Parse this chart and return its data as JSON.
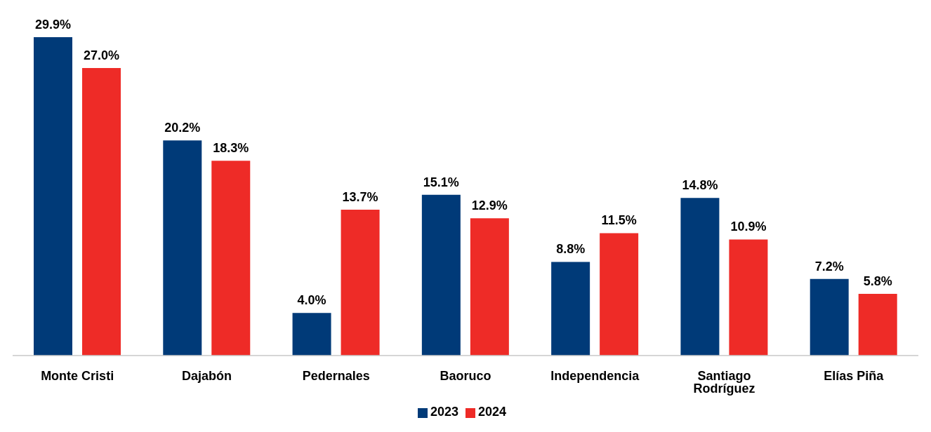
{
  "chart_data": {
    "type": "bar",
    "categories": [
      "Monte Cristi",
      "Dajabón",
      "Pedernales",
      "Baoruco",
      "Independencia",
      "Santiago Rodríguez",
      "Elías Piña"
    ],
    "series": [
      {
        "name": "2023",
        "color": "#003a78",
        "values": [
          29.9,
          20.2,
          4.0,
          15.1,
          8.8,
          14.8,
          7.2
        ],
        "value_labels": [
          "29.9%",
          "20.2%",
          "4.0%",
          "15.1%",
          "8.8%",
          "14.8%",
          "7.2%"
        ]
      },
      {
        "name": "2024",
        "color": "#ee2b27",
        "values": [
          27.0,
          18.3,
          13.7,
          12.9,
          11.5,
          10.9,
          5.8
        ],
        "value_labels": [
          "27.0%",
          "18.3%",
          "13.7%",
          "12.9%",
          "11.5%",
          "10.9%",
          "5.8%"
        ]
      }
    ],
    "legend": "bottom",
    "grid": false
  }
}
